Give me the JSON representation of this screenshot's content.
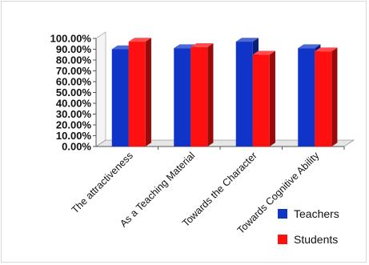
{
  "chart_data": {
    "type": "bar",
    "style": "3d-clustered-column",
    "categories": [
      "The attractiveness",
      "As a Teaching Material",
      "Towards the Character",
      "Towards Cognitive Ability"
    ],
    "series": [
      {
        "name": "Teachers",
        "color": "#1034c8",
        "values": [
          0.9,
          0.91,
          0.97,
          0.91
        ]
      },
      {
        "name": "Students",
        "color": "#ff1010",
        "values": [
          0.97,
          0.92,
          0.85,
          0.88
        ]
      }
    ],
    "y_ticks": [
      "0.00%",
      "10.00%",
      "20.00%",
      "30.00%",
      "40.00%",
      "50.00%",
      "60.00%",
      "70.00%",
      "80.00%",
      "90.00%",
      "100.00%"
    ],
    "ylim": [
      0,
      1
    ],
    "legend_position": "right",
    "grid": false
  }
}
